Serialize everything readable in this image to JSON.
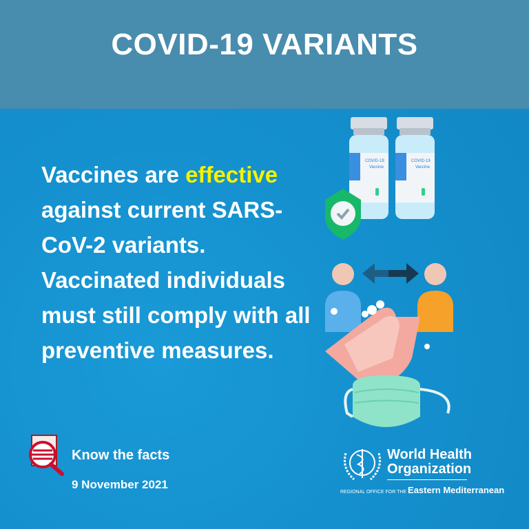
{
  "header": {
    "title": "COVID-19 VARIANTS"
  },
  "message": {
    "before": "Vaccines are ",
    "highlight": "effective",
    "after": " against current SARS-CoV-2 variants. Vaccinated individuals must still comply with all preventive measures."
  },
  "illustration": {
    "vial_label_1": "COVID-19",
    "vial_label_2": "Vaccine"
  },
  "footer": {
    "know_the_facts": "Know the facts",
    "date": "9 November 2021",
    "org_name_line1": "World Health",
    "org_name_line2": "Organization",
    "region_prefix": "REGIONAL OFFICE FOR THE",
    "region": "Eastern Mediterranean"
  },
  "colors": {
    "header": "#488cae",
    "background": "#1591cf",
    "highlight": "#f5f200",
    "icon_red": "#c8102e"
  }
}
